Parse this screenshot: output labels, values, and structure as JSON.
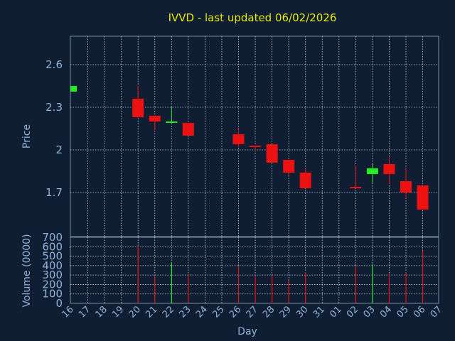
{
  "chart_data": {
    "type": "candlestick",
    "title": "IVVD - last updated 06/02/2026",
    "colors": {
      "background": "#0f1e33",
      "title": "#e8e800",
      "text": "#8fb3d9",
      "frame": "#7a8aa0",
      "grid": "#c8d4e0",
      "up": "#22ee22",
      "down": "#ee1111"
    },
    "x_ticks": [
      "16",
      "17",
      "18",
      "19",
      "20",
      "21",
      "22",
      "23",
      "24",
      "25",
      "26",
      "27",
      "28",
      "29",
      "30",
      "31",
      "01",
      "02",
      "03",
      "04",
      "05",
      "06",
      "07"
    ],
    "xlabel": "Day",
    "price_panel": {
      "ylabel": "Price",
      "yticks": [
        "1.7",
        "2",
        "2.3",
        "2.6"
      ],
      "ytick_values": [
        1.7,
        2.0,
        2.3,
        2.6
      ],
      "ylim": [
        1.39,
        2.8
      ]
    },
    "volume_panel": {
      "ylabel": "Volume (0000)",
      "yticks": [
        "0",
        "100",
        "200",
        "300",
        "400",
        "500",
        "600",
        "700"
      ],
      "ytick_values": [
        0,
        100,
        200,
        300,
        400,
        500,
        600,
        700
      ],
      "ylim": [
        0,
        700
      ]
    },
    "candles": [
      {
        "day": "16",
        "open": 2.41,
        "close": 2.45,
        "high": 2.45,
        "low": 2.41
      },
      {
        "day": "20",
        "open": 2.36,
        "close": 2.23,
        "high": 2.45,
        "low": 2.23
      },
      {
        "day": "21",
        "open": 2.24,
        "close": 2.2,
        "high": 2.24,
        "low": 2.14
      },
      {
        "day": "22",
        "open": 2.19,
        "close": 2.2,
        "high": 2.3,
        "low": 2.19
      },
      {
        "day": "23",
        "open": 2.19,
        "close": 2.1,
        "high": 2.19,
        "low": 2.1
      },
      {
        "day": "26",
        "open": 2.11,
        "close": 2.04,
        "high": 2.15,
        "low": 2.02
      },
      {
        "day": "27",
        "open": 2.03,
        "close": 2.02,
        "high": 2.03,
        "low": 1.99
      },
      {
        "day": "28",
        "open": 2.04,
        "close": 1.91,
        "high": 2.04,
        "low": 1.91
      },
      {
        "day": "29",
        "open": 1.93,
        "close": 1.84,
        "high": 1.93,
        "low": 1.82
      },
      {
        "day": "30",
        "open": 1.84,
        "close": 1.73,
        "high": 1.87,
        "low": 1.73
      },
      {
        "day": "02",
        "open": 1.74,
        "close": 1.73,
        "high": 1.89,
        "low": 1.73
      },
      {
        "day": "03",
        "open": 1.83,
        "close": 1.87,
        "high": 1.9,
        "low": 1.77
      },
      {
        "day": "04",
        "open": 1.9,
        "close": 1.83,
        "high": 1.95,
        "low": 1.76
      },
      {
        "day": "05",
        "open": 1.78,
        "close": 1.7,
        "high": 1.87,
        "low": 1.66
      },
      {
        "day": "06",
        "open": 1.75,
        "close": 1.58,
        "high": 1.75,
        "low": 1.58
      }
    ],
    "volume": [
      {
        "day": "20",
        "value": 610,
        "dir": "down"
      },
      {
        "day": "21",
        "value": 285,
        "dir": "down"
      },
      {
        "day": "22",
        "value": 430,
        "dir": "up"
      },
      {
        "day": "23",
        "value": 300,
        "dir": "down"
      },
      {
        "day": "26",
        "value": 395,
        "dir": "down"
      },
      {
        "day": "27",
        "value": 290,
        "dir": "down"
      },
      {
        "day": "28",
        "value": 290,
        "dir": "down"
      },
      {
        "day": "29",
        "value": 240,
        "dir": "down"
      },
      {
        "day": "30",
        "value": 330,
        "dir": "down"
      },
      {
        "day": "02",
        "value": 395,
        "dir": "down"
      },
      {
        "day": "03",
        "value": 415,
        "dir": "up"
      },
      {
        "day": "04",
        "value": 310,
        "dir": "down"
      },
      {
        "day": "05",
        "value": 330,
        "dir": "down"
      },
      {
        "day": "06",
        "value": 560,
        "dir": "down"
      }
    ]
  }
}
